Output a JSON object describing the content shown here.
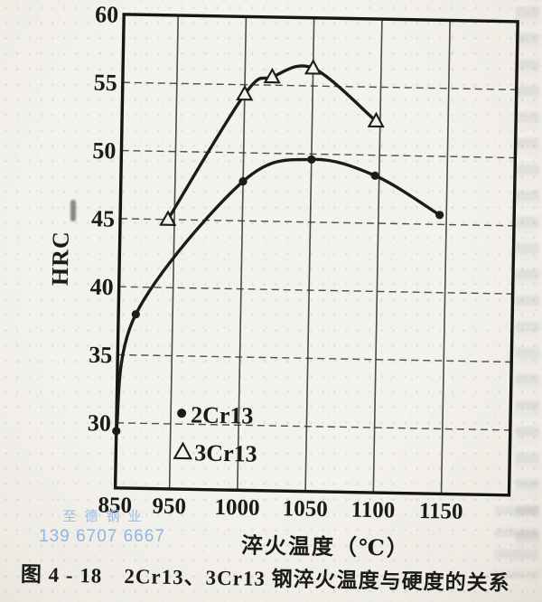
{
  "page": {
    "caption": {
      "figure_label": "图 4 - 18",
      "title": "2Cr13、3Cr13 钢淬火温度与硬度的关系"
    },
    "watermark": {
      "line1": "至德钢业",
      "line2": "139 6707 6667",
      "color": "#8fb5e3"
    }
  },
  "chart_data": {
    "type": "line",
    "title": "",
    "xlabel": "淬火温度（℃）",
    "ylabel": "HRC",
    "x_ticks": [
      850,
      950,
      1000,
      1050,
      1100,
      1150
    ],
    "y_ticks": [
      30,
      35,
      40,
      45,
      50,
      55,
      60
    ],
    "ylim": [
      25,
      60
    ],
    "axis_note": "x axis segment 850-950 is compressed relative to the 50-degree intervals",
    "grid": "on",
    "legend_position": "inside lower-left",
    "ink_color": "#1b1b1b",
    "paper_color": "#f4f2ec",
    "series": [
      {
        "name": "2Cr13",
        "marker": "filled-circle",
        "points": [
          [
            850,
            29.4
          ],
          [
            882,
            38.0
          ],
          [
            1000,
            47.9
          ],
          [
            1050,
            49.6
          ],
          [
            1097,
            48.5
          ],
          [
            1145,
            45.7
          ]
        ]
      },
      {
        "name": "3Cr13",
        "marker": "open-triangle",
        "points": [
          [
            938,
            45.0
          ],
          [
            1000,
            54.3
          ],
          [
            1020,
            55.6
          ],
          [
            1050,
            56.3
          ],
          [
            1097,
            52.5
          ]
        ]
      }
    ]
  }
}
